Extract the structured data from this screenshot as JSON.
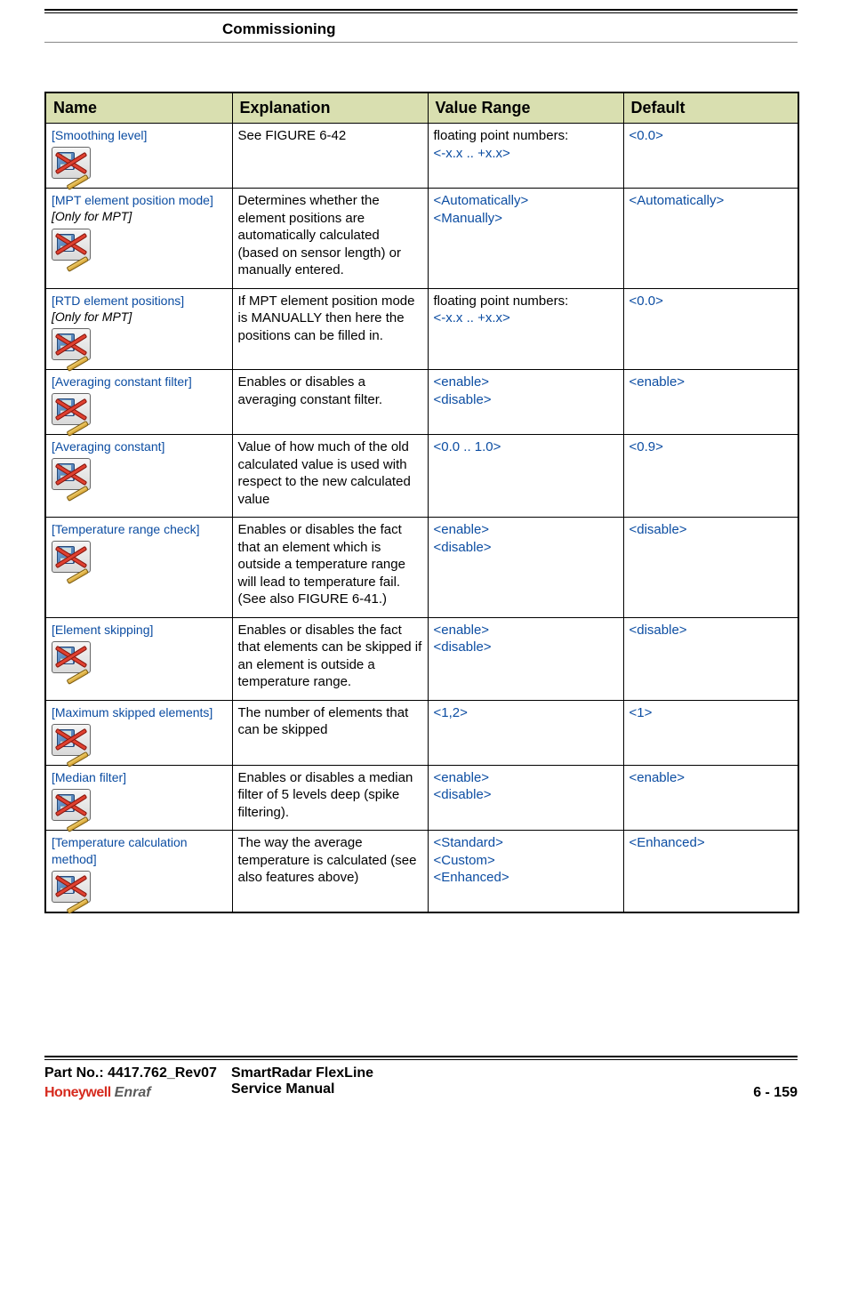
{
  "header": {
    "section_title": "Commissioning"
  },
  "table": {
    "columns": [
      "Name",
      "Explanation",
      "Value Range",
      "Default"
    ],
    "rows": [
      {
        "name": "[Smoothing level]",
        "subnote": "",
        "explanation": "See FIGURE 6-42",
        "value_range_plain": "floating point numbers:",
        "value_range_blue": "<-x.x .. +x.x>",
        "default": "<0.0>"
      },
      {
        "name": "[MPT element position mode]",
        "subnote": "[Only for MPT]",
        "explanation": "Determines whether the element positions are automatically calculated (based on sensor length) or manually entered.",
        "value_range_plain": "",
        "value_range_blue": "<Automatically>\n<Manually>",
        "default": "<Automatically>"
      },
      {
        "name": "[RTD element positions]",
        "subnote": "[Only for MPT]",
        "explanation": "If MPT element position mode is MANUALLY then here the positions can be filled in.",
        "value_range_plain": "floating point numbers:",
        "value_range_blue": "<-x.x .. +x.x>",
        "default": "<0.0>"
      },
      {
        "name": "[Averaging constant filter]",
        "subnote": "",
        "explanation": "Enables or disables a averaging constant filter.",
        "value_range_plain": "",
        "value_range_blue": "<enable>\n<disable>",
        "default": "<enable>"
      },
      {
        "name": "[Averaging constant]",
        "subnote": "",
        "explanation": "Value of how much of the old calculated value is used with respect to the new calculated value",
        "value_range_plain": "",
        "value_range_blue": "<0.0 .. 1.0>",
        "default": "<0.9>"
      },
      {
        "name": "[Temperature range check]",
        "subnote": "",
        "explanation": "Enables or disables the fact that an element which is outside a temperature range will lead to temperature fail.\n(See also FIGURE 6-41.)",
        "value_range_plain": "",
        "value_range_blue": "<enable>\n<disable>",
        "default": "<disable>"
      },
      {
        "name": "[Element skipping]",
        "subnote": "",
        "explanation": "Enables or disables the fact that elements can be skipped if an element is outside a temperature range.",
        "value_range_plain": "",
        "value_range_blue": "<enable>\n<disable>",
        "default": "<disable>"
      },
      {
        "name": "[Maximum skipped elements]",
        "subnote": "",
        "explanation": "The number of elements that can be skipped",
        "value_range_plain": "",
        "value_range_blue": "<1,2>",
        "default": "<1>"
      },
      {
        "name": "[Median filter]",
        "subnote": "",
        "explanation": "Enables or disables a median filter of 5 levels deep (spike filtering).",
        "value_range_plain": "",
        "value_range_blue": "<enable>\n<disable>",
        "default": "<enable>"
      },
      {
        "name": "[Temperature calculation method]",
        "subnote": "",
        "explanation": "The way the average temperature is calculated (see also features above)",
        "value_range_plain": "",
        "value_range_blue": "<Standard>\n<Custom>\n<Enhanced>",
        "default": "<Enhanced>"
      }
    ]
  },
  "footer": {
    "part_no": "Part No.: 4417.762_Rev07",
    "doc_title_line1": "SmartRadar FlexLine",
    "doc_title_line2": "Service Manual",
    "page_no": "6 - 159",
    "logo_left": "Honeywell",
    "logo_right": "Enraf"
  },
  "colors": {
    "header_bg": "#d9dfb0",
    "link_blue": "#0c4da2",
    "cross_red": "#e04030",
    "honeywell_red": "#d62b1f"
  }
}
